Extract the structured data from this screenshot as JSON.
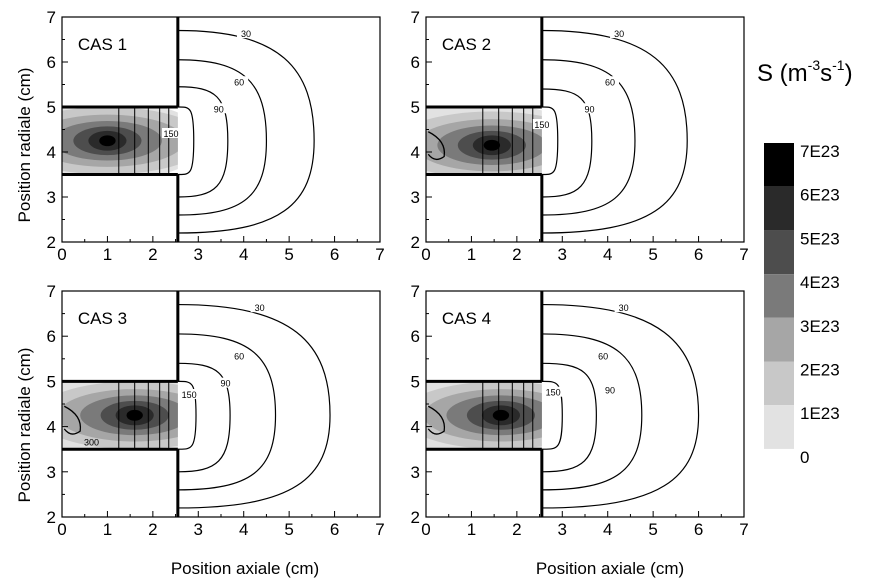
{
  "chart_data": {
    "type": "contour",
    "xlabel": "Position axiale (cm)",
    "ylabel": "Position radiale (cm)",
    "xlim": [
      0,
      7
    ],
    "ylim": [
      2,
      7
    ],
    "x_ticks": [
      "0",
      "1",
      "2",
      "3",
      "4",
      "5",
      "6",
      "7"
    ],
    "y_ticks": [
      "2",
      "3",
      "4",
      "5",
      "6",
      "7"
    ],
    "geometry": {
      "electrode_end_x": 2.55,
      "channel_top_y": 5.0,
      "channel_bottom_y": 3.5
    },
    "colorbar": {
      "title": "S (m",
      "exp1": "-3",
      "mid": "s",
      "exp2": "-1",
      "close": ")",
      "levels": [
        "7E23",
        "6E23",
        "5E23",
        "4E23",
        "3E23",
        "2E23",
        "1E23",
        "0"
      ],
      "colors": [
        "#000000",
        "#2a2a2a",
        "#4d4d4d",
        "#7a7a7a",
        "#a6a6a6",
        "#c8c8c8",
        "#e2e2e2",
        "#ffffff"
      ]
    },
    "panels": [
      {
        "name": "CAS 1",
        "max_center": [
          1.0,
          4.25
        ],
        "contours": [
          {
            "label": "30",
            "x_max": 5.55,
            "y_top": 6.7,
            "y_bot": 2.2,
            "label_at": [
              4.05,
              6.62
            ]
          },
          {
            "label": "60",
            "x_max": 4.5,
            "y_top": 6.05,
            "y_bot": 2.6,
            "label_at": [
              3.9,
              5.55
            ]
          },
          {
            "label": "90",
            "x_max": 3.65,
            "y_top": 5.45,
            "y_bot": 3.0,
            "label_at": [
              3.45,
              4.95
            ]
          },
          {
            "label": "150",
            "x_max": 2.9,
            "y_top": 5.0,
            "y_bot": 3.5,
            "label_at": [
              2.4,
              4.4
            ]
          }
        ],
        "inner_label": null
      },
      {
        "name": "CAS 2",
        "max_center": [
          1.45,
          4.15
        ],
        "contours": [
          {
            "label": "30",
            "x_max": 5.75,
            "y_top": 6.7,
            "y_bot": 2.2,
            "label_at": [
              4.25,
              6.62
            ]
          },
          {
            "label": "60",
            "x_max": 4.6,
            "y_top": 6.05,
            "y_bot": 2.6,
            "label_at": [
              4.05,
              5.55
            ]
          },
          {
            "label": "90",
            "x_max": 3.65,
            "y_top": 5.4,
            "y_bot": 3.0,
            "label_at": [
              3.6,
              4.95
            ]
          },
          {
            "label": "150",
            "x_max": 2.9,
            "y_top": 5.0,
            "y_bot": 3.5,
            "label_at": [
              2.55,
              4.6
            ]
          }
        ],
        "inner_label": null
      },
      {
        "name": "CAS 3",
        "max_center": [
          1.6,
          4.25
        ],
        "contours": [
          {
            "label": "30",
            "x_max": 5.9,
            "y_top": 6.7,
            "y_bot": 2.2,
            "label_at": [
              4.35,
              6.62
            ]
          },
          {
            "label": "60",
            "x_max": 4.7,
            "y_top": 6.05,
            "y_bot": 2.6,
            "label_at": [
              3.9,
              5.55
            ]
          },
          {
            "label": "90",
            "x_max": 3.7,
            "y_top": 5.4,
            "y_bot": 3.0,
            "label_at": [
              3.6,
              4.95
            ]
          },
          {
            "label": "150",
            "x_max": 2.95,
            "y_top": 5.0,
            "y_bot": 3.5,
            "label_at": [
              2.8,
              4.7
            ]
          }
        ],
        "inner_label": {
          "label": "300",
          "at": [
            0.65,
            3.65
          ]
        }
      },
      {
        "name": "CAS 4",
        "max_center": [
          1.65,
          4.25
        ],
        "contours": [
          {
            "label": "30",
            "x_max": 6.0,
            "y_top": 6.7,
            "y_bot": 2.2,
            "label_at": [
              4.35,
              6.62
            ]
          },
          {
            "label": "60",
            "x_max": 4.75,
            "y_top": 6.05,
            "y_bot": 2.6,
            "label_at": [
              3.9,
              5.55
            ]
          },
          {
            "label": "90",
            "x_max": 3.75,
            "y_top": 5.4,
            "y_bot": 3.0,
            "label_at": [
              4.05,
              4.8
            ]
          },
          {
            "label": "150",
            "x_max": 3.0,
            "y_top": 5.0,
            "y_bot": 3.5,
            "label_at": [
              2.8,
              4.75
            ]
          }
        ],
        "inner_label": null
      }
    ]
  }
}
